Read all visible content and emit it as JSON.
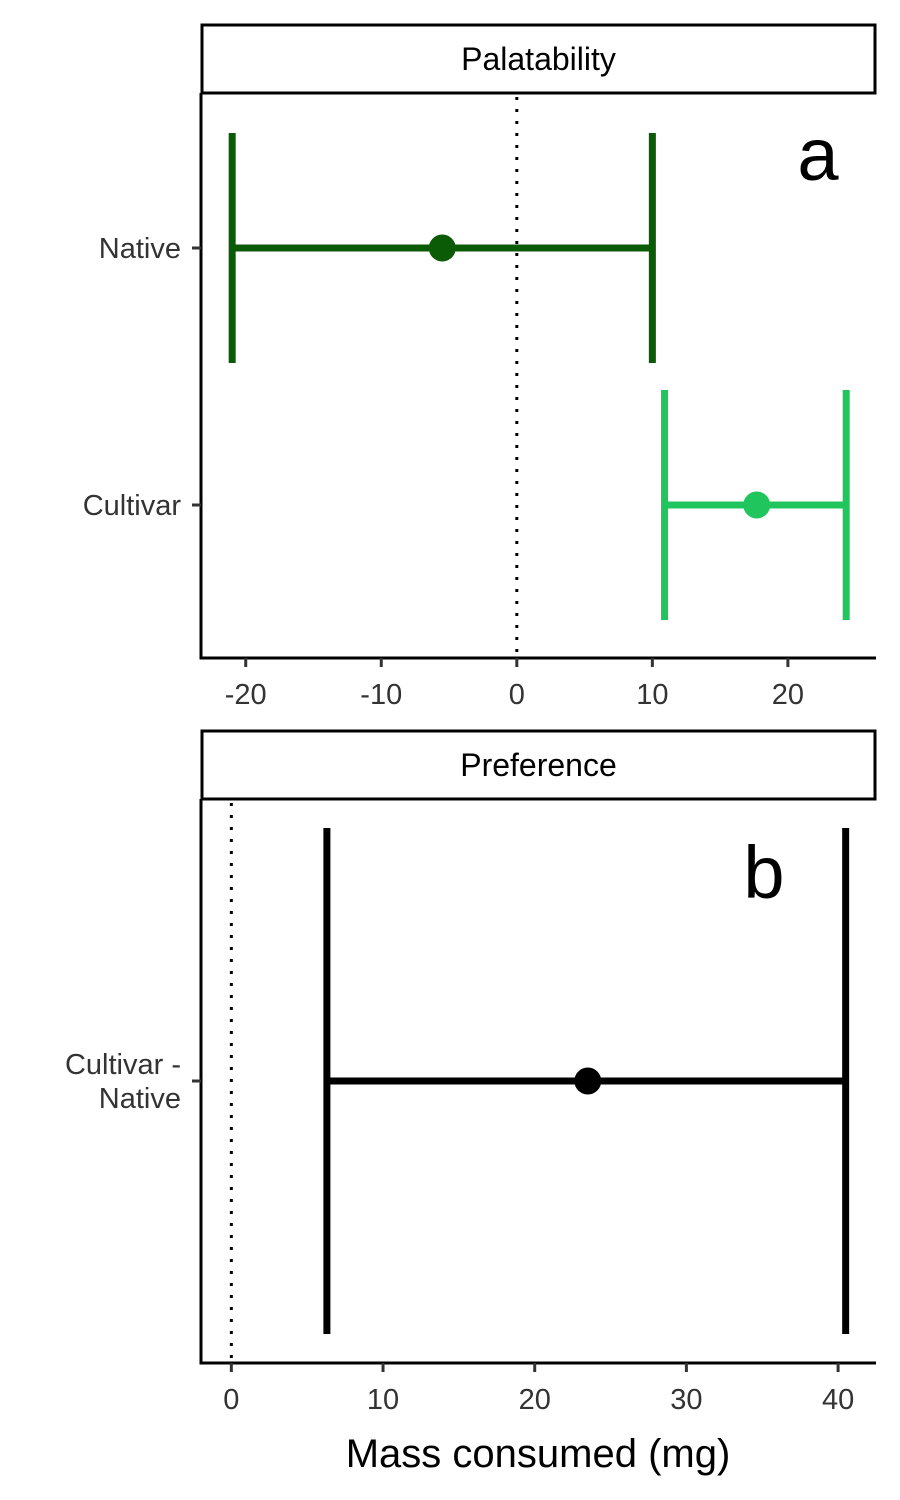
{
  "xlabel": "Mass consumed (mg)",
  "chart_data": [
    {
      "type": "errorbar",
      "strip": "Palatability",
      "tag": "a",
      "xlim": [
        -23.3,
        26.5
      ],
      "xticks": [
        -20,
        -10,
        0,
        10,
        20
      ],
      "reference_line": 0,
      "rows": [
        {
          "label": "Native",
          "estimate": -5.5,
          "lower": -21.0,
          "upper": 10.0,
          "color": "#0b5a05"
        },
        {
          "label": "Cultivar",
          "estimate": 17.7,
          "lower": 10.9,
          "upper": 24.3,
          "color": "#21c55d"
        }
      ]
    },
    {
      "type": "errorbar",
      "strip": "Preference",
      "tag": "b",
      "xlim": [
        -2.0,
        42.5
      ],
      "xticks": [
        0,
        10,
        20,
        30,
        40
      ],
      "reference_line": 0,
      "rows": [
        {
          "label": "Cultivar -\nNative",
          "estimate": 23.5,
          "lower": 6.3,
          "upper": 40.5,
          "color": "#000000"
        }
      ]
    }
  ]
}
